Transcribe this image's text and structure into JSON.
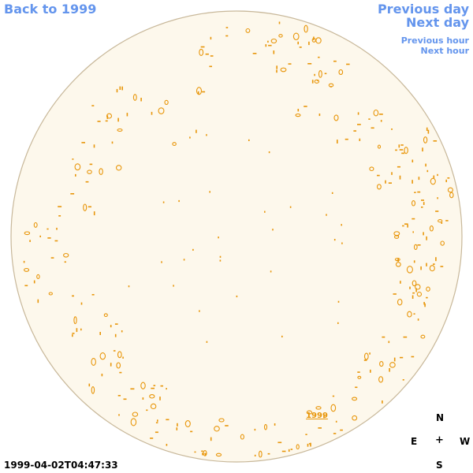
{
  "nav": {
    "back_label": "Back to 1999",
    "previous_day_label": "Previous day",
    "next_day_label": "Next day",
    "previous_hour_label": "Previous hour",
    "next_hour_label": "Next hour"
  },
  "sky": {
    "disc_fill": "#fdf8ec",
    "disc_stroke": "#c8b89a",
    "marker_color": "#e8960a",
    "year_label": "1999"
  },
  "compass": {
    "north": "N",
    "east": "E",
    "center": "+",
    "west": "W",
    "south": "S"
  },
  "footer": {
    "timestamp": "1999-04-02T04:47:33"
  },
  "colors": {
    "link": "#6495ed",
    "text": "#000000"
  }
}
